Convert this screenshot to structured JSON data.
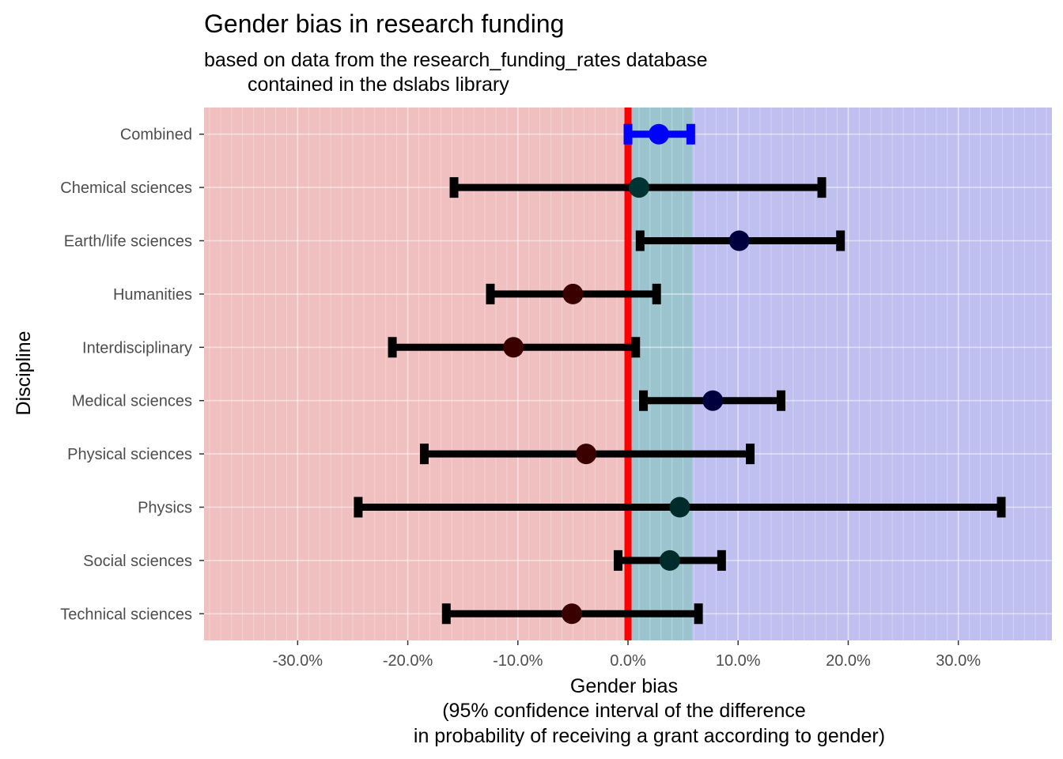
{
  "chart_data": {
    "type": "errorbar",
    "title": "Gender bias in research funding",
    "subtitle_lines": [
      "based on data from the research_funding_rates database",
      "contained in the dslabs library"
    ],
    "xlabel_lines": [
      "Gender bias",
      "(95% confidence interval of the difference",
      "in probability of receiving a grant according to gender)"
    ],
    "ylabel": "Discipline",
    "xlim": [
      -0.385,
      0.385
    ],
    "x_ticks": [
      -0.3,
      -0.2,
      -0.1,
      0.0,
      0.1,
      0.2,
      0.3
    ],
    "x_tick_labels": [
      "-30.0%",
      "-20.0%",
      "-10.0%",
      "0.0%",
      "10.0%",
      "20.0%",
      "30.0%"
    ],
    "grid": true,
    "legend": "none",
    "bands": [
      {
        "from": -0.385,
        "to": 0.0,
        "color": "#f0bfbf"
      },
      {
        "from": 0.0,
        "to": 0.0585,
        "color": "#9cc4cf"
      },
      {
        "from": 0.0585,
        "to": 0.385,
        "color": "#bfbff0"
      }
    ],
    "zero_line": {
      "x": 0.0,
      "color": "#ff0000"
    },
    "categories": [
      "Combined",
      "Chemical sciences",
      "Earth/life sciences",
      "Humanities",
      "Interdisciplinary",
      "Medical sciences",
      "Physical sciences",
      "Physics",
      "Social sciences",
      "Technical sciences"
    ],
    "series": [
      {
        "estimates": [
          0.028,
          0.01,
          0.101,
          -0.05,
          -0.104,
          0.077,
          -0.038,
          0.047,
          0.038,
          -0.051
        ],
        "ci_low": [
          0.0,
          -0.158,
          0.011,
          -0.125,
          -0.214,
          0.014,
          -0.185,
          -0.245,
          -0.009,
          -0.165
        ],
        "ci_high": [
          0.057,
          0.176,
          0.193,
          0.026,
          0.007,
          0.139,
          0.111,
          0.339,
          0.085,
          0.064
        ],
        "colors": [
          "#0000ff",
          "#003333",
          "#00003f",
          "#3a0000",
          "#3a0000",
          "#00003f",
          "#3a0000",
          "#002b2b",
          "#002b2b",
          "#3a0000"
        ],
        "bar_colors": [
          "#0000ff",
          "#000000",
          "#000000",
          "#000000",
          "#000000",
          "#000000",
          "#000000",
          "#000000",
          "#000000",
          "#000000"
        ]
      }
    ]
  }
}
